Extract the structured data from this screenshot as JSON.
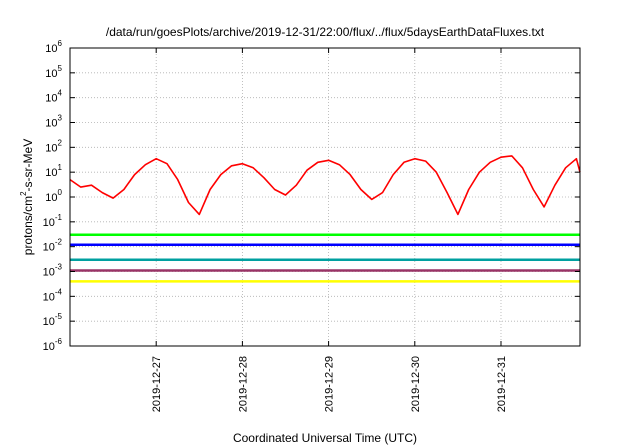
{
  "chart_data": {
    "type": "line",
    "title": "/data/run/goesPlots/archive/2019-12-31/22:00/flux/../flux/5daysEarthDataFluxes.txt",
    "xlabel": "Coordinated Universal Time (UTC)",
    "ylabel": {
      "base": "protons/cm",
      "sup": "2",
      "rest": "-s-sr-MeV"
    },
    "y_scale": "log",
    "ylim": [
      1e-06,
      1000000.0
    ],
    "y_ticks": [
      {
        "base": "10",
        "exp": "-6",
        "value": 1e-06
      },
      {
        "base": "10",
        "exp": "-5",
        "value": 1e-05
      },
      {
        "base": "10",
        "exp": "-4",
        "value": 0.0001
      },
      {
        "base": "10",
        "exp": "-3",
        "value": 0.001
      },
      {
        "base": "10",
        "exp": "-2",
        "value": 0.01
      },
      {
        "base": "10",
        "exp": "-1",
        "value": 0.1
      },
      {
        "base": "10",
        "exp": "0",
        "value": 1
      },
      {
        "base": "10",
        "exp": "1",
        "value": 10
      },
      {
        "base": "10",
        "exp": "2",
        "value": 100
      },
      {
        "base": "10",
        "exp": "3",
        "value": 1000
      },
      {
        "base": "10",
        "exp": "4",
        "value": 10000
      },
      {
        "base": "10",
        "exp": "5",
        "value": 100000
      },
      {
        "base": "10",
        "exp": "6",
        "value": 1000000
      }
    ],
    "xlim": [
      "2019-12-26T00:00",
      "2019-12-31T22:00"
    ],
    "x_ticks": [
      "2019-12-27",
      "2019-12-28",
      "2019-12-29",
      "2019-12-30",
      "2019-12-31"
    ],
    "grid": true,
    "legend": "none",
    "series": [
      {
        "color": "#ff0000",
        "x": [
          "2019-12-26T00:00",
          "2019-12-26T03:00",
          "2019-12-26T06:00",
          "2019-12-26T09:00",
          "2019-12-26T12:00",
          "2019-12-26T15:00",
          "2019-12-26T18:00",
          "2019-12-26T21:00",
          "2019-12-27T00:00",
          "2019-12-27T03:00",
          "2019-12-27T06:00",
          "2019-12-27T09:00",
          "2019-12-27T12:00",
          "2019-12-27T15:00",
          "2019-12-27T18:00",
          "2019-12-27T21:00",
          "2019-12-28T00:00",
          "2019-12-28T03:00",
          "2019-12-28T06:00",
          "2019-12-28T09:00",
          "2019-12-28T12:00",
          "2019-12-28T15:00",
          "2019-12-28T18:00",
          "2019-12-28T21:00",
          "2019-12-29T00:00",
          "2019-12-29T03:00",
          "2019-12-29T06:00",
          "2019-12-29T09:00",
          "2019-12-29T12:00",
          "2019-12-29T15:00",
          "2019-12-29T18:00",
          "2019-12-29T21:00",
          "2019-12-30T00:00",
          "2019-12-30T03:00",
          "2019-12-30T06:00",
          "2019-12-30T09:00",
          "2019-12-30T12:00",
          "2019-12-30T15:00",
          "2019-12-30T18:00",
          "2019-12-30T21:00",
          "2019-12-31T00:00",
          "2019-12-31T03:00",
          "2019-12-31T06:00",
          "2019-12-31T09:00",
          "2019-12-31T12:00",
          "2019-12-31T15:00",
          "2019-12-31T18:00",
          "2019-12-31T21:00",
          "2019-12-31T22:00"
        ],
        "values": [
          5,
          2.5,
          3,
          1.5,
          0.9,
          2,
          8,
          20,
          35,
          22,
          5,
          0.6,
          0.2,
          2,
          8,
          18,
          22,
          15,
          6,
          2,
          1.2,
          3,
          12,
          25,
          30,
          20,
          8,
          2,
          0.8,
          1.5,
          8,
          25,
          35,
          28,
          10,
          1.5,
          0.2,
          2,
          10,
          25,
          40,
          45,
          15,
          2,
          0.4,
          3,
          15,
          35,
          10
        ]
      },
      {
        "color": "#00ff00",
        "x": [
          "2019-12-26T00:00",
          "2019-12-27T00:00",
          "2019-12-28T00:00",
          "2019-12-29T00:00",
          "2019-12-30T00:00",
          "2019-12-31T00:00",
          "2019-12-31T22:00"
        ],
        "values": [
          0.03,
          0.03,
          0.03,
          0.03,
          0.03,
          0.03,
          0.03
        ]
      },
      {
        "color": "#0000ff",
        "x": [
          "2019-12-26T00:00",
          "2019-12-27T00:00",
          "2019-12-28T00:00",
          "2019-12-29T00:00",
          "2019-12-30T00:00",
          "2019-12-31T00:00",
          "2019-12-31T22:00"
        ],
        "values": [
          0.012,
          0.012,
          0.012,
          0.012,
          0.012,
          0.012,
          0.012
        ]
      },
      {
        "color": "#00a0a0",
        "x": [
          "2019-12-26T00:00",
          "2019-12-27T00:00",
          "2019-12-28T00:00",
          "2019-12-29T00:00",
          "2019-12-30T00:00",
          "2019-12-31T00:00",
          "2019-12-31T22:00"
        ],
        "values": [
          0.003,
          0.003,
          0.003,
          0.003,
          0.003,
          0.003,
          0.003
        ]
      },
      {
        "color": "#993366",
        "x": [
          "2019-12-26T00:00",
          "2019-12-27T00:00",
          "2019-12-28T00:00",
          "2019-12-29T00:00",
          "2019-12-30T00:00",
          "2019-12-31T00:00",
          "2019-12-31T22:00"
        ],
        "values": [
          0.0011,
          0.0011,
          0.0011,
          0.0011,
          0.0011,
          0.0011,
          0.0011
        ]
      },
      {
        "color": "#ffff00",
        "x": [
          "2019-12-26T00:00",
          "2019-12-27T00:00",
          "2019-12-28T00:00",
          "2019-12-29T00:00",
          "2019-12-30T00:00",
          "2019-12-31T00:00",
          "2019-12-31T22:00"
        ],
        "values": [
          0.0004,
          0.0004,
          0.0004,
          0.0004,
          0.0004,
          0.0004,
          0.0004
        ]
      }
    ]
  }
}
